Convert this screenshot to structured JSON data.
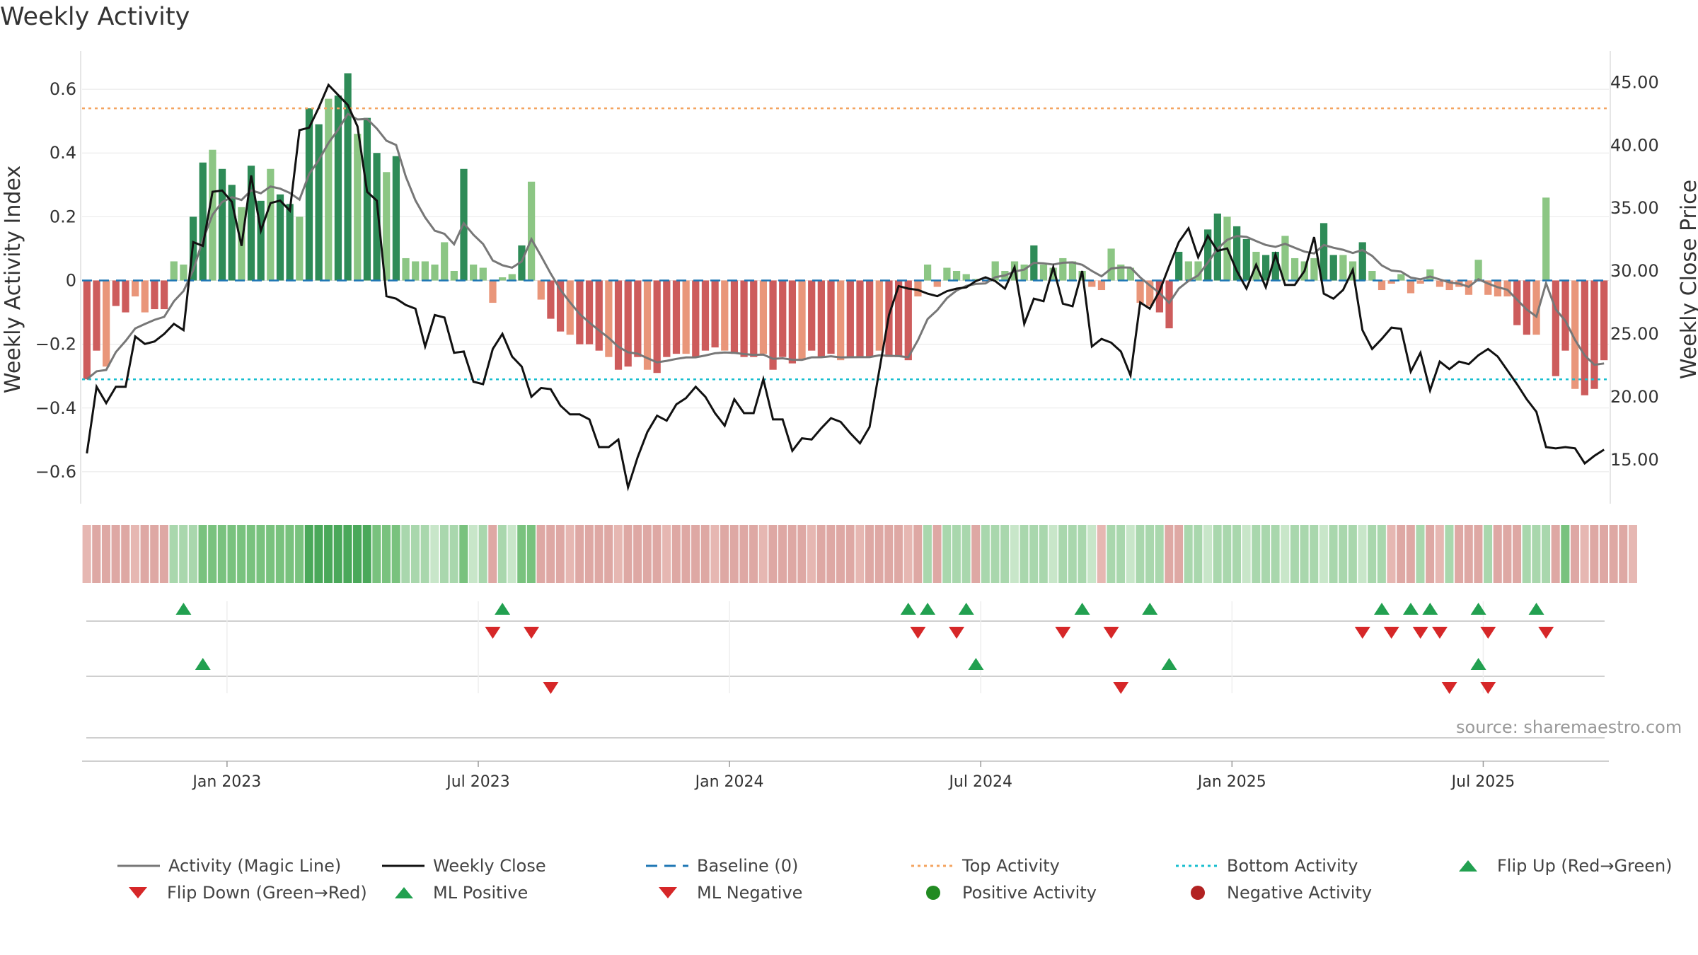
{
  "title": "Weekly Activity",
  "source": "source: sharemaestro.com",
  "colors": {
    "pos_strong": "#2e8b57",
    "pos_light": "#8cc684",
    "neg_strong": "#cd5c5c",
    "neg_light": "#e9967a",
    "magic": "#777777",
    "close": "#111111",
    "baseline": "#1f77b4",
    "top": "#f4a460",
    "bottom": "#17becf",
    "up": "#22a050",
    "down": "#d62728",
    "pos_dot": "#228b22",
    "neg_dot": "#b22222"
  },
  "chart_data": {
    "type": "bar+line",
    "title": "Weekly Activity",
    "ylabel": "Weekly Activity Index",
    "y2label": "Weekly Close Price",
    "ylim": [
      -0.7,
      0.72
    ],
    "y2lim": [
      11.5,
      47.5
    ],
    "yticks": [
      "0.6",
      "0.4",
      "0.2",
      "0",
      "−0.2",
      "−0.4",
      "−0.6"
    ],
    "ytick_values": [
      0.6,
      0.4,
      0.2,
      0,
      -0.2,
      -0.4,
      -0.6
    ],
    "y2ticks": [
      "45.00",
      "40.00",
      "35.00",
      "30.00",
      "25.00",
      "20.00",
      "15.00"
    ],
    "y2tick_values": [
      45,
      40,
      35,
      30,
      25,
      20,
      15
    ],
    "xticks": [
      "Jan 2023",
      "Jul 2023",
      "Jan 2024",
      "Jul 2024",
      "Jan 2025",
      "Jul 2025"
    ],
    "xtick_weeks": [
      14.5,
      40.5,
      66.5,
      92.5,
      118.5,
      144.5
    ],
    "baseline": 0,
    "top_activity": 0.54,
    "bottom_activity": -0.31,
    "activity": [
      -0.31,
      -0.22,
      -0.27,
      -0.08,
      -0.1,
      -0.05,
      -0.1,
      -0.09,
      -0.09,
      0.06,
      0.05,
      0.2,
      0.37,
      0.41,
      0.35,
      0.3,
      0.23,
      0.36,
      0.25,
      0.35,
      0.27,
      0.24,
      0.2,
      0.54,
      0.49,
      0.57,
      0.58,
      0.65,
      0.46,
      0.51,
      0.4,
      0.34,
      0.39,
      0.07,
      0.06,
      0.06,
      0.05,
      0.12,
      0.03,
      0.35,
      0.05,
      0.04,
      -0.07,
      0.01,
      0.02,
      0.11,
      0.31,
      -0.06,
      -0.12,
      -0.16,
      -0.17,
      -0.2,
      -0.2,
      -0.22,
      -0.24,
      -0.28,
      -0.27,
      -0.24,
      -0.28,
      -0.29,
      -0.24,
      -0.23,
      -0.23,
      -0.24,
      -0.22,
      -0.21,
      -0.22,
      -0.23,
      -0.24,
      -0.24,
      -0.23,
      -0.28,
      -0.24,
      -0.26,
      -0.25,
      -0.22,
      -0.24,
      -0.23,
      -0.25,
      -0.24,
      -0.24,
      -0.24,
      -0.22,
      -0.24,
      -0.24,
      -0.25,
      -0.05,
      0.05,
      -0.02,
      0.04,
      0.03,
      0.02,
      0.005,
      -0.005,
      0.06,
      0.03,
      0.06,
      0.05,
      0.11,
      0.05,
      0.04,
      0.07,
      0.06,
      0.03,
      -0.02,
      -0.03,
      0.1,
      0.05,
      0.04,
      -0.07,
      -0.08,
      -0.1,
      -0.15,
      0.09,
      0.06,
      0.06,
      0.16,
      0.21,
      0.2,
      0.17,
      0.13,
      0.09,
      0.08,
      0.09,
      0.14,
      0.07,
      0.06,
      0.07,
      0.18,
      0.08,
      0.08,
      0.06,
      0.12,
      0.03,
      -0.03,
      -0.01,
      0.02,
      -0.04,
      -0.01,
      0.035,
      -0.02,
      -0.03,
      -0.02,
      -0.045,
      0.065,
      -0.045,
      -0.05,
      -0.05,
      -0.14,
      -0.17,
      -0.17,
      0.26,
      -0.3,
      -0.22,
      -0.34,
      -0.36,
      -0.34,
      -0.25
    ],
    "weekly_close": [
      15.5,
      20.8,
      19.5,
      20.8,
      20.8,
      24.8,
      24.2,
      24.4,
      25.0,
      25.8,
      25.3,
      32.3,
      32.0,
      36.3,
      36.4,
      35.5,
      32.0,
      37.6,
      33.2,
      35.4,
      35.6,
      34.8,
      41.2,
      41.4,
      43.0,
      44.8,
      44.0,
      43.2,
      41.5,
      36.3,
      35.6,
      28.0,
      27.8,
      27.3,
      27.0,
      24.0,
      26.5,
      26.3,
      23.5,
      23.6,
      21.2,
      21.0,
      23.8,
      25.0,
      23.2,
      22.4,
      20.0,
      20.7,
      20.6,
      19.3,
      18.6,
      18.6,
      18.2,
      16.0,
      16.0,
      16.6,
      12.8,
      15.2,
      17.2,
      18.5,
      18.1,
      19.4,
      19.9,
      20.8,
      20.0,
      18.7,
      17.7,
      19.8,
      18.7,
      18.7,
      21.4,
      18.2,
      18.2,
      15.7,
      16.7,
      16.6,
      17.5,
      18.3,
      18.0,
      17.1,
      16.3,
      17.6,
      22.1,
      26.5,
      28.8,
      28.6,
      28.5,
      28.2,
      28.0,
      28.4,
      28.6,
      28.7,
      29.2,
      29.5,
      29.2,
      28.6,
      30.3,
      25.8,
      27.8,
      27.6,
      30.3,
      27.4,
      27.2,
      30.0,
      24.0,
      24.6,
      24.3,
      23.6,
      21.7,
      27.5,
      27.0,
      28.4,
      30.4,
      32.3,
      33.4,
      31.1,
      32.8,
      31.6,
      31.8,
      30.0,
      28.6,
      30.5,
      28.7,
      31.3,
      28.9,
      28.9,
      30.0,
      32.7,
      28.2,
      27.8,
      28.5,
      30.1,
      25.3,
      23.8,
      24.6,
      25.5,
      25.4,
      22.0,
      23.5,
      20.5,
      22.8,
      22.2,
      22.8,
      22.6,
      23.3,
      23.8,
      23.2,
      22.1,
      21.0,
      19.8,
      18.8,
      16.0,
      15.9,
      16.0,
      15.9,
      14.7,
      15.3,
      15.8
    ],
    "heat_strip": [
      -1,
      -1,
      -1,
      -1,
      -1,
      -1,
      -1,
      -1,
      -1,
      1,
      1,
      1,
      2,
      2,
      2,
      2,
      2,
      2,
      2,
      2,
      2,
      2,
      2,
      3,
      3,
      3,
      3,
      3,
      3,
      3,
      2,
      2,
      2,
      1,
      1,
      1,
      1,
      1,
      1,
      2,
      1,
      1,
      -1,
      1,
      1,
      2,
      2,
      -1,
      -1,
      -1,
      -1,
      -1,
      -1,
      -1,
      -1,
      -1,
      -1,
      -1,
      -1,
      -1,
      -1,
      -1,
      -1,
      -1,
      -1,
      -1,
      -1,
      -1,
      -1,
      -1,
      -1,
      -1,
      -1,
      -1,
      -1,
      -1,
      -1,
      -1,
      -1,
      -1,
      -1,
      -1,
      -1,
      -1,
      -1,
      -1,
      -1,
      1,
      -1,
      1,
      1,
      1,
      -1,
      1,
      1,
      1,
      1,
      1,
      1,
      1,
      1,
      1,
      1,
      1,
      1,
      -1,
      1,
      1,
      1,
      1,
      1,
      1,
      -1,
      -1,
      1,
      1,
      1,
      1,
      1,
      1,
      1,
      1,
      1,
      1,
      1,
      1,
      1,
      1,
      1,
      1,
      1,
      1,
      1,
      1,
      1,
      -1,
      -1,
      -1,
      1,
      -1,
      -1,
      1,
      -1,
      -1,
      -1,
      1,
      -1,
      -1,
      -1,
      1,
      1,
      1,
      -1,
      2,
      -1,
      -1,
      -1,
      -1,
      -1,
      -1,
      -1
    ],
    "flip_up": [
      10,
      43,
      85,
      87,
      91,
      103,
      110,
      134,
      137,
      139,
      144,
      150
    ],
    "flip_down": [
      42,
      46,
      86,
      90,
      101,
      106,
      132,
      135,
      138,
      140,
      145,
      151
    ],
    "ml_positive": [
      12,
      92,
      112,
      144
    ],
    "ml_negative": [
      48,
      107,
      141,
      145
    ]
  },
  "legend": [
    {
      "label": "Activity (Magic Line)",
      "icon": "line-solid-gray"
    },
    {
      "label": "Weekly Close",
      "icon": "line-solid-black"
    },
    {
      "label": "Baseline (0)",
      "icon": "line-dashed-blue"
    },
    {
      "label": "Top Activity",
      "icon": "line-dotted-orange"
    },
    {
      "label": "Bottom Activity",
      "icon": "line-dotted-cyan"
    },
    {
      "label": "Flip Up (Red→Green)",
      "icon": "triangle-up-green"
    },
    {
      "label": "Flip Down (Green→Red)",
      "icon": "triangle-down-red"
    },
    {
      "label": "ML Positive",
      "icon": "triangle-up-green"
    },
    {
      "label": "ML Negative",
      "icon": "triangle-down-red"
    },
    {
      "label": "Positive Activity",
      "icon": "circle-green"
    },
    {
      "label": "Negative Activity",
      "icon": "circle-red"
    }
  ]
}
